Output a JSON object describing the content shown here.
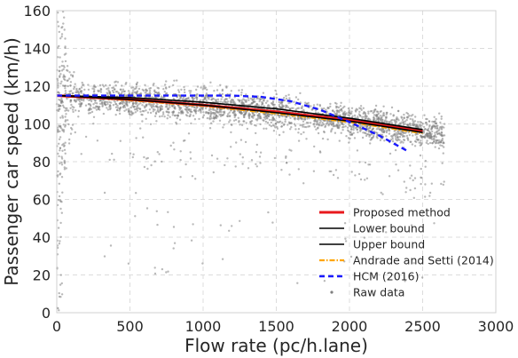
{
  "chart_data": {
    "type": "scatter",
    "title": "",
    "xlabel": "Flow rate (pc/h.lane)",
    "ylabel": "Passenger car speed (km/h)",
    "xlim": [
      0,
      3000
    ],
    "ylim": [
      0,
      160
    ],
    "x_ticks": [
      0,
      500,
      1000,
      1500,
      2000,
      2500,
      3000
    ],
    "y_ticks": [
      0,
      20,
      40,
      60,
      80,
      100,
      120,
      140,
      160
    ],
    "grid": true,
    "legend_position": "lower-right",
    "series": [
      {
        "name": "Proposed method",
        "style": "solid",
        "color": "#e8191c",
        "x": [
          0,
          500,
          1000,
          1500,
          2000,
          2500
        ],
        "y": [
          115,
          113,
          110,
          106.5,
          102,
          96
        ]
      },
      {
        "name": "Lower bound",
        "style": "solid",
        "color": "#000000",
        "x": [
          0,
          500,
          1000,
          1500,
          2000,
          2500
        ],
        "y": [
          115,
          113,
          110,
          106,
          101.5,
          95.5
        ]
      },
      {
        "name": "Upper bound",
        "style": "solid",
        "color": "#000000",
        "x": [
          0,
          500,
          1000,
          1500,
          2000,
          2500
        ],
        "y": [
          115,
          114,
          111.5,
          108,
          103,
          97
        ]
      },
      {
        "name": "Andrade and Setti (2014)",
        "style": "dashdot",
        "color": "#ffa500",
        "x": [
          0,
          500,
          1000,
          1500,
          2000,
          2500
        ],
        "y": [
          115,
          112.5,
          109.5,
          105.5,
          101,
          95
        ]
      },
      {
        "name": "HCM (2016)",
        "style": "dashed",
        "color": "#1a1aff",
        "x": [
          0,
          1000,
          1200,
          1400,
          1600,
          1800,
          2000,
          2200,
          2400
        ],
        "y": [
          115,
          115,
          115,
          114.3,
          112,
          107.5,
          101,
          94,
          85.5
        ]
      }
    ],
    "scatter": {
      "name": "Raw data",
      "color": "#808080",
      "description_points": "dense band around the fitted curves from 0 to ~2700 pc/h.lane"
    },
    "legend": [
      "Proposed method",
      "Lower bound",
      "Upper bound",
      "Andrade and Setti (2014)",
      "HCM (2016)",
      "Raw data"
    ]
  }
}
